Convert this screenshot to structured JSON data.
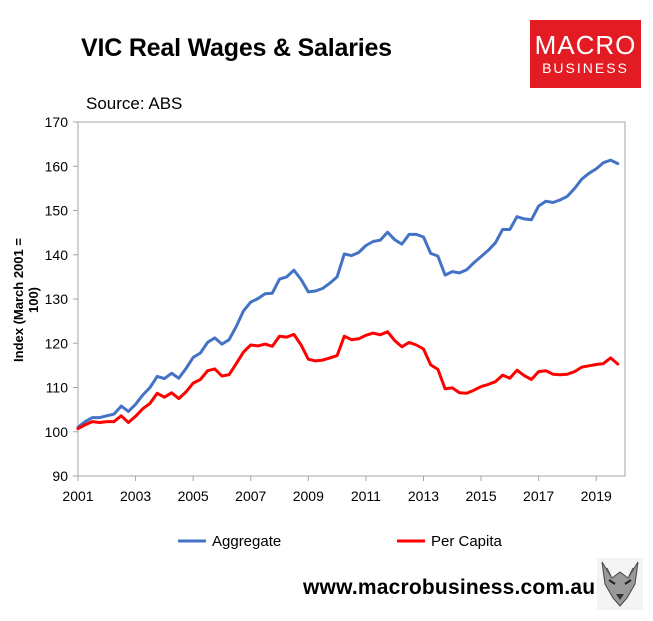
{
  "logo": {
    "line1": "MACRO",
    "line2": "BUSINESS"
  },
  "footer": {
    "url": "www.macrobusiness.com.au"
  },
  "colors": {
    "aggregate": "#4472c4",
    "per_capita": "#ff0000",
    "logo_bg": "#e31b23",
    "axis": "#a6a6a6"
  },
  "chart_data": {
    "type": "line",
    "title": "VIC Real Wages & Salaries",
    "subtitle": "Source: ABS",
    "ylabel": "Index (March 2001 = 100)",
    "xlabel": "",
    "xlim": [
      2001,
      2020
    ],
    "ylim": [
      90,
      170
    ],
    "x_ticks": [
      2001,
      2003,
      2005,
      2007,
      2009,
      2011,
      2013,
      2015,
      2017,
      2019
    ],
    "y_ticks": [
      90,
      100,
      110,
      120,
      130,
      140,
      150,
      160,
      170
    ],
    "grid": false,
    "legend": "bottom",
    "series": [
      {
        "name": "Aggregate",
        "points": [
          [
            2001.0,
            101.0
          ],
          [
            2001.25,
            102.3
          ],
          [
            2001.5,
            103.2
          ],
          [
            2001.75,
            103.2
          ],
          [
            2002.0,
            103.6
          ],
          [
            2002.25,
            104.0
          ],
          [
            2002.5,
            105.8
          ],
          [
            2002.75,
            104.6
          ],
          [
            2003.0,
            106.2
          ],
          [
            2003.25,
            108.3
          ],
          [
            2003.5,
            110.0
          ],
          [
            2003.75,
            112.5
          ],
          [
            2004.0,
            112.0
          ],
          [
            2004.25,
            113.2
          ],
          [
            2004.5,
            112.1
          ],
          [
            2004.75,
            114.3
          ],
          [
            2005.0,
            116.8
          ],
          [
            2005.25,
            117.8
          ],
          [
            2005.5,
            120.2
          ],
          [
            2005.75,
            121.2
          ],
          [
            2006.0,
            119.8
          ],
          [
            2006.25,
            120.8
          ],
          [
            2006.5,
            123.8
          ],
          [
            2006.75,
            127.3
          ],
          [
            2007.0,
            129.3
          ],
          [
            2007.25,
            130.1
          ],
          [
            2007.5,
            131.2
          ],
          [
            2007.75,
            131.3
          ],
          [
            2008.0,
            134.5
          ],
          [
            2008.25,
            135.0
          ],
          [
            2008.5,
            136.5
          ],
          [
            2008.75,
            134.4
          ],
          [
            2009.0,
            131.6
          ],
          [
            2009.25,
            131.8
          ],
          [
            2009.5,
            132.4
          ],
          [
            2009.75,
            133.6
          ],
          [
            2010.0,
            135.0
          ],
          [
            2010.25,
            140.2
          ],
          [
            2010.5,
            139.8
          ],
          [
            2010.75,
            140.5
          ],
          [
            2011.0,
            142.1
          ],
          [
            2011.25,
            143.0
          ],
          [
            2011.5,
            143.3
          ],
          [
            2011.75,
            145.1
          ],
          [
            2012.0,
            143.4
          ],
          [
            2012.25,
            142.4
          ],
          [
            2012.5,
            144.6
          ],
          [
            2012.75,
            144.6
          ],
          [
            2013.0,
            144.0
          ],
          [
            2013.25,
            140.3
          ],
          [
            2013.5,
            139.7
          ],
          [
            2013.75,
            135.4
          ],
          [
            2014.0,
            136.2
          ],
          [
            2014.25,
            135.9
          ],
          [
            2014.5,
            136.6
          ],
          [
            2014.75,
            138.2
          ],
          [
            2015.0,
            139.6
          ],
          [
            2015.25,
            141.0
          ],
          [
            2015.5,
            142.7
          ],
          [
            2015.75,
            145.7
          ],
          [
            2016.0,
            145.7
          ],
          [
            2016.25,
            148.6
          ],
          [
            2016.5,
            148.1
          ],
          [
            2016.75,
            147.9
          ],
          [
            2017.0,
            151.0
          ],
          [
            2017.25,
            152.1
          ],
          [
            2017.5,
            151.8
          ],
          [
            2017.75,
            152.4
          ],
          [
            2018.0,
            153.2
          ],
          [
            2018.25,
            155.0
          ],
          [
            2018.5,
            157.1
          ],
          [
            2018.75,
            158.4
          ],
          [
            2019.0,
            159.4
          ],
          [
            2019.25,
            160.8
          ],
          [
            2019.5,
            161.4
          ],
          [
            2019.75,
            160.6
          ]
        ]
      },
      {
        "name": "Per Capita",
        "points": [
          [
            2001.0,
            100.7
          ],
          [
            2001.25,
            101.6
          ],
          [
            2001.5,
            102.3
          ],
          [
            2001.75,
            102.1
          ],
          [
            2002.0,
            102.3
          ],
          [
            2002.25,
            102.3
          ],
          [
            2002.5,
            103.6
          ],
          [
            2002.75,
            102.1
          ],
          [
            2003.0,
            103.5
          ],
          [
            2003.25,
            105.2
          ],
          [
            2003.5,
            106.4
          ],
          [
            2003.75,
            108.7
          ],
          [
            2004.0,
            107.8
          ],
          [
            2004.25,
            108.8
          ],
          [
            2004.5,
            107.5
          ],
          [
            2004.75,
            109.0
          ],
          [
            2005.0,
            111.0
          ],
          [
            2005.25,
            111.8
          ],
          [
            2005.5,
            113.8
          ],
          [
            2005.75,
            114.2
          ],
          [
            2006.0,
            112.6
          ],
          [
            2006.25,
            112.9
          ],
          [
            2006.5,
            115.4
          ],
          [
            2006.75,
            118.0
          ],
          [
            2007.0,
            119.6
          ],
          [
            2007.25,
            119.4
          ],
          [
            2007.5,
            119.8
          ],
          [
            2007.75,
            119.3
          ],
          [
            2008.0,
            121.6
          ],
          [
            2008.25,
            121.4
          ],
          [
            2008.5,
            122.0
          ],
          [
            2008.75,
            119.6
          ],
          [
            2009.0,
            116.4
          ],
          [
            2009.25,
            116.0
          ],
          [
            2009.5,
            116.2
          ],
          [
            2009.75,
            116.7
          ],
          [
            2010.0,
            117.2
          ],
          [
            2010.25,
            121.6
          ],
          [
            2010.5,
            120.8
          ],
          [
            2010.75,
            121.0
          ],
          [
            2011.0,
            121.8
          ],
          [
            2011.25,
            122.3
          ],
          [
            2011.5,
            121.9
          ],
          [
            2011.75,
            122.6
          ],
          [
            2012.0,
            120.6
          ],
          [
            2012.25,
            119.2
          ],
          [
            2012.5,
            120.2
          ],
          [
            2012.75,
            119.6
          ],
          [
            2013.0,
            118.7
          ],
          [
            2013.25,
            115.1
          ],
          [
            2013.5,
            114.1
          ],
          [
            2013.75,
            109.7
          ],
          [
            2014.0,
            109.9
          ],
          [
            2014.25,
            108.8
          ],
          [
            2014.5,
            108.7
          ],
          [
            2014.75,
            109.4
          ],
          [
            2015.0,
            110.2
          ],
          [
            2015.25,
            110.7
          ],
          [
            2015.5,
            111.3
          ],
          [
            2015.75,
            112.8
          ],
          [
            2016.0,
            112.1
          ],
          [
            2016.25,
            113.9
          ],
          [
            2016.5,
            112.7
          ],
          [
            2016.75,
            111.8
          ],
          [
            2017.0,
            113.6
          ],
          [
            2017.25,
            113.8
          ],
          [
            2017.5,
            113.0
          ],
          [
            2017.75,
            112.9
          ],
          [
            2018.0,
            113.0
          ],
          [
            2018.25,
            113.6
          ],
          [
            2018.5,
            114.6
          ],
          [
            2018.75,
            114.9
          ],
          [
            2019.0,
            115.2
          ],
          [
            2019.25,
            115.4
          ],
          [
            2019.5,
            116.7
          ],
          [
            2019.75,
            115.3
          ]
        ]
      }
    ]
  }
}
